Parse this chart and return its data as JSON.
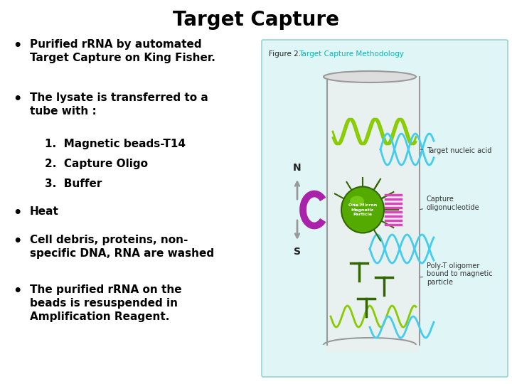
{
  "title": "Target Capture",
  "title_fontsize": 20,
  "title_fontweight": "bold",
  "background_color": "#ffffff",
  "bullet_fontsize": 11,
  "bullet_fontweight": "bold",
  "bullet_color": "#000000",
  "figure_caption": "Figure 2. ",
  "figure_caption_highlight": "Target Capture Methodology",
  "figure_caption_highlight_color": "#00bbbb",
  "image_box_bg": "#e0f5f5",
  "image_box_border": "#88cccc"
}
